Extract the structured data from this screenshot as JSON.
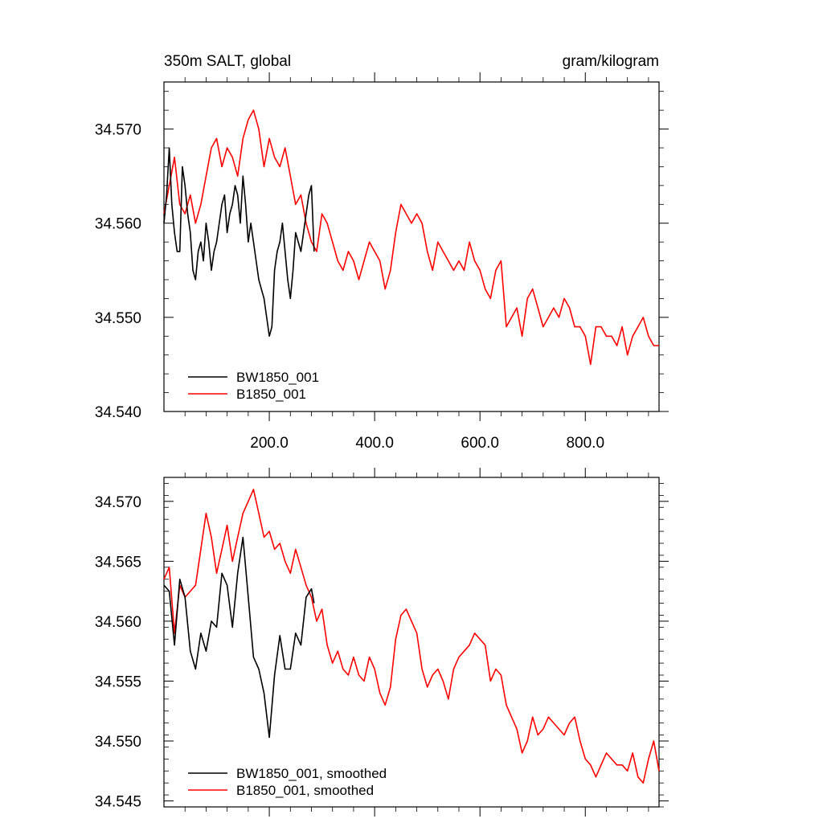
{
  "colors": {
    "BW1850_001": "#000000",
    "B1850_001": "#ff0000"
  },
  "chart_data": [
    {
      "type": "line",
      "title": "350m SALT, global",
      "units": "gram/kilogram",
      "xlabel": "",
      "ylabel": "",
      "xlim": [
        0,
        940
      ],
      "ylim": [
        34.54,
        34.575
      ],
      "x_ticks": [
        200,
        400,
        600,
        800
      ],
      "x_tick_labels": [
        "200.0",
        "400.0",
        "600.0",
        "800.0"
      ],
      "y_ticks": [
        34.54,
        34.55,
        34.56,
        34.57
      ],
      "y_tick_labels": [
        "34.540",
        "34.550",
        "34.560",
        "34.570"
      ],
      "legend_position": "bottom-left",
      "series": [
        {
          "name": "BW1850_001",
          "color": "#000000",
          "x": [
            0,
            5,
            10,
            15,
            20,
            25,
            30,
            35,
            40,
            45,
            50,
            55,
            60,
            65,
            70,
            75,
            80,
            85,
            90,
            95,
            100,
            105,
            110,
            115,
            120,
            125,
            130,
            135,
            140,
            145,
            150,
            155,
            160,
            165,
            170,
            175,
            180,
            185,
            190,
            195,
            200,
            205,
            210,
            215,
            220,
            225,
            230,
            235,
            240,
            245,
            250,
            255,
            260,
            265,
            270,
            275,
            280,
            285
          ],
          "y": [
            34.56,
            34.563,
            34.568,
            34.562,
            34.559,
            34.557,
            34.557,
            34.566,
            34.564,
            34.561,
            34.559,
            34.555,
            34.554,
            34.557,
            34.558,
            34.556,
            34.56,
            34.558,
            34.555,
            34.557,
            34.558,
            34.56,
            34.562,
            34.563,
            34.559,
            34.561,
            34.562,
            34.564,
            34.563,
            34.56,
            34.565,
            34.562,
            34.558,
            34.56,
            34.558,
            34.556,
            34.554,
            34.553,
            34.552,
            34.55,
            34.548,
            34.549,
            34.555,
            34.557,
            34.558,
            34.56,
            34.557,
            34.554,
            34.552,
            34.555,
            34.559,
            34.558,
            34.557,
            34.559,
            34.561,
            34.563,
            34.564,
            34.557
          ]
        },
        {
          "name": "B1850_001",
          "color": "#ff0000",
          "x": [
            0,
            10,
            20,
            30,
            40,
            50,
            60,
            70,
            80,
            90,
            100,
            110,
            120,
            130,
            140,
            150,
            160,
            170,
            180,
            190,
            200,
            210,
            220,
            230,
            240,
            250,
            260,
            270,
            280,
            290,
            300,
            310,
            320,
            330,
            340,
            350,
            360,
            370,
            380,
            390,
            400,
            410,
            420,
            430,
            440,
            450,
            460,
            470,
            480,
            490,
            500,
            510,
            520,
            530,
            540,
            550,
            560,
            570,
            580,
            590,
            600,
            610,
            620,
            630,
            640,
            650,
            660,
            670,
            680,
            690,
            700,
            710,
            720,
            730,
            740,
            750,
            760,
            770,
            780,
            790,
            800,
            810,
            820,
            830,
            840,
            850,
            860,
            870,
            880,
            890,
            900,
            910,
            920,
            930,
            940
          ],
          "y": [
            34.561,
            34.564,
            34.567,
            34.562,
            34.561,
            34.563,
            34.56,
            34.562,
            34.565,
            34.568,
            34.569,
            34.566,
            34.568,
            34.567,
            34.565,
            34.569,
            34.571,
            34.572,
            34.57,
            34.566,
            34.569,
            34.567,
            34.566,
            34.568,
            34.565,
            34.562,
            34.563,
            34.56,
            34.558,
            34.557,
            34.561,
            34.56,
            34.558,
            34.556,
            34.555,
            34.557,
            34.556,
            34.554,
            34.556,
            34.558,
            34.557,
            34.556,
            34.553,
            34.555,
            34.559,
            34.562,
            34.561,
            34.56,
            34.561,
            34.56,
            34.557,
            34.555,
            34.558,
            34.557,
            34.556,
            34.555,
            34.556,
            34.555,
            34.558,
            34.556,
            34.555,
            34.553,
            34.552,
            34.555,
            34.556,
            34.549,
            34.55,
            34.551,
            34.548,
            34.552,
            34.553,
            34.551,
            34.549,
            34.55,
            34.551,
            34.55,
            34.552,
            34.551,
            34.549,
            34.549,
            34.548,
            34.545,
            34.549,
            34.549,
            34.548,
            34.548,
            34.547,
            34.549,
            34.546,
            34.548,
            34.549,
            34.55,
            34.548,
            34.547,
            34.547
          ]
        }
      ]
    },
    {
      "type": "line",
      "title": "",
      "xlabel": "",
      "ylabel": "",
      "xlim": [
        0,
        940
      ],
      "ylim": [
        34.5445,
        34.572
      ],
      "x_ticks": [
        200,
        400,
        600,
        800
      ],
      "y_ticks": [
        34.545,
        34.55,
        34.555,
        34.56,
        34.565,
        34.57
      ],
      "y_tick_labels": [
        "34.545",
        "34.550",
        "34.555",
        "34.560",
        "34.565",
        "34.570"
      ],
      "legend_position": "bottom-left",
      "series": [
        {
          "name": "BW1850_001, smoothed",
          "color": "#000000",
          "x": [
            0,
            10,
            20,
            30,
            40,
            50,
            60,
            70,
            80,
            90,
            100,
            110,
            120,
            130,
            140,
            150,
            160,
            170,
            180,
            190,
            200,
            210,
            220,
            230,
            240,
            250,
            260,
            270,
            280,
            285
          ],
          "y": [
            34.563,
            34.5625,
            34.558,
            34.5635,
            34.562,
            34.5575,
            34.556,
            34.559,
            34.5575,
            34.56,
            34.5595,
            34.564,
            34.563,
            34.5595,
            34.564,
            34.567,
            34.562,
            34.557,
            34.556,
            34.554,
            34.5503,
            34.5555,
            34.5588,
            34.556,
            34.556,
            34.559,
            34.558,
            34.562,
            34.5627,
            34.5615
          ]
        },
        {
          "name": "B1850_001, smoothed",
          "color": "#ff0000",
          "x": [
            0,
            10,
            20,
            30,
            40,
            50,
            60,
            70,
            80,
            90,
            100,
            110,
            120,
            130,
            140,
            150,
            160,
            170,
            180,
            190,
            200,
            210,
            220,
            230,
            240,
            250,
            260,
            270,
            280,
            290,
            300,
            310,
            320,
            330,
            340,
            350,
            360,
            370,
            380,
            390,
            400,
            410,
            420,
            430,
            440,
            450,
            460,
            470,
            480,
            490,
            500,
            510,
            520,
            530,
            540,
            550,
            560,
            570,
            580,
            590,
            600,
            610,
            620,
            630,
            640,
            650,
            660,
            670,
            680,
            690,
            700,
            710,
            720,
            730,
            740,
            750,
            760,
            770,
            780,
            790,
            800,
            810,
            820,
            830,
            840,
            850,
            860,
            870,
            880,
            890,
            900,
            910,
            920,
            930,
            940
          ],
          "y": [
            34.5635,
            34.5645,
            34.559,
            34.563,
            34.562,
            34.5625,
            34.563,
            34.566,
            34.569,
            34.567,
            34.564,
            34.566,
            34.568,
            34.565,
            34.567,
            34.569,
            34.57,
            34.571,
            34.569,
            34.567,
            34.5675,
            34.566,
            34.5665,
            34.565,
            34.564,
            34.566,
            34.5645,
            34.563,
            34.562,
            34.56,
            34.561,
            34.558,
            34.5565,
            34.5575,
            34.556,
            34.5555,
            34.557,
            34.5555,
            34.555,
            34.557,
            34.556,
            34.554,
            34.553,
            34.5545,
            34.5585,
            34.5605,
            34.561,
            34.56,
            34.559,
            34.556,
            34.5545,
            34.5555,
            34.556,
            34.555,
            34.5535,
            34.556,
            34.557,
            34.5575,
            34.558,
            34.559,
            34.5585,
            34.558,
            34.555,
            34.556,
            34.5555,
            34.553,
            34.552,
            34.551,
            34.549,
            34.55,
            34.552,
            34.5505,
            34.551,
            34.552,
            34.5515,
            34.551,
            34.5505,
            34.5515,
            34.552,
            34.55,
            34.5485,
            34.548,
            34.547,
            34.548,
            34.549,
            34.5485,
            34.548,
            34.548,
            34.5475,
            34.549,
            34.547,
            34.5465,
            34.5485,
            34.55,
            34.5475
          ]
        }
      ]
    }
  ]
}
